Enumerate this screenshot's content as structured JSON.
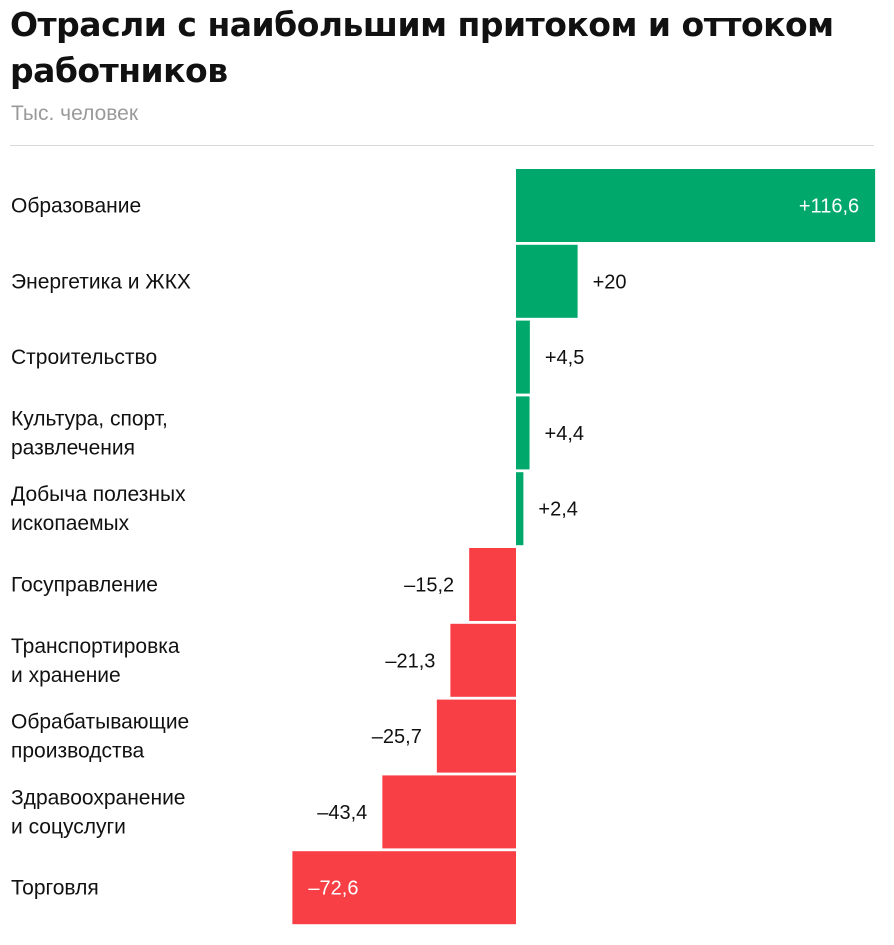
{
  "title": "Отрасли с наибольшим притоком и оттоком работников",
  "subtitle": "Тыс. человек",
  "chart_data": {
    "type": "bar",
    "orientation": "horizontal",
    "title": "Отрасли с наибольшим притоком и оттоком работников",
    "unit": "Тыс. человек",
    "categories": [
      [
        "Образование"
      ],
      [
        "Энергетика и ЖКХ"
      ],
      [
        "Строительство"
      ],
      [
        "Культура, спорт,",
        "развлечения"
      ],
      [
        "Добыча полезных",
        "ископаемых"
      ],
      [
        "Госуправление"
      ],
      [
        "Транспортировка",
        "и хранение"
      ],
      [
        "Обрабатывающие",
        "производства"
      ],
      [
        "Здравоохранение",
        "и соцуслуги"
      ],
      [
        "Торговля"
      ]
    ],
    "values": [
      116.6,
      20,
      4.5,
      4.4,
      2.4,
      -15.2,
      -21.3,
      -25.7,
      -43.4,
      -72.6
    ],
    "labels": [
      "+116,6",
      "+20",
      "+4,5",
      "+4,4",
      "+2,4",
      "–15,2",
      "–21,3",
      "–25,7",
      "–43,4",
      "–72,6"
    ],
    "colors": {
      "positive": "#00a86b",
      "negative": "#f73f45"
    },
    "grid": false,
    "legend": "none"
  }
}
